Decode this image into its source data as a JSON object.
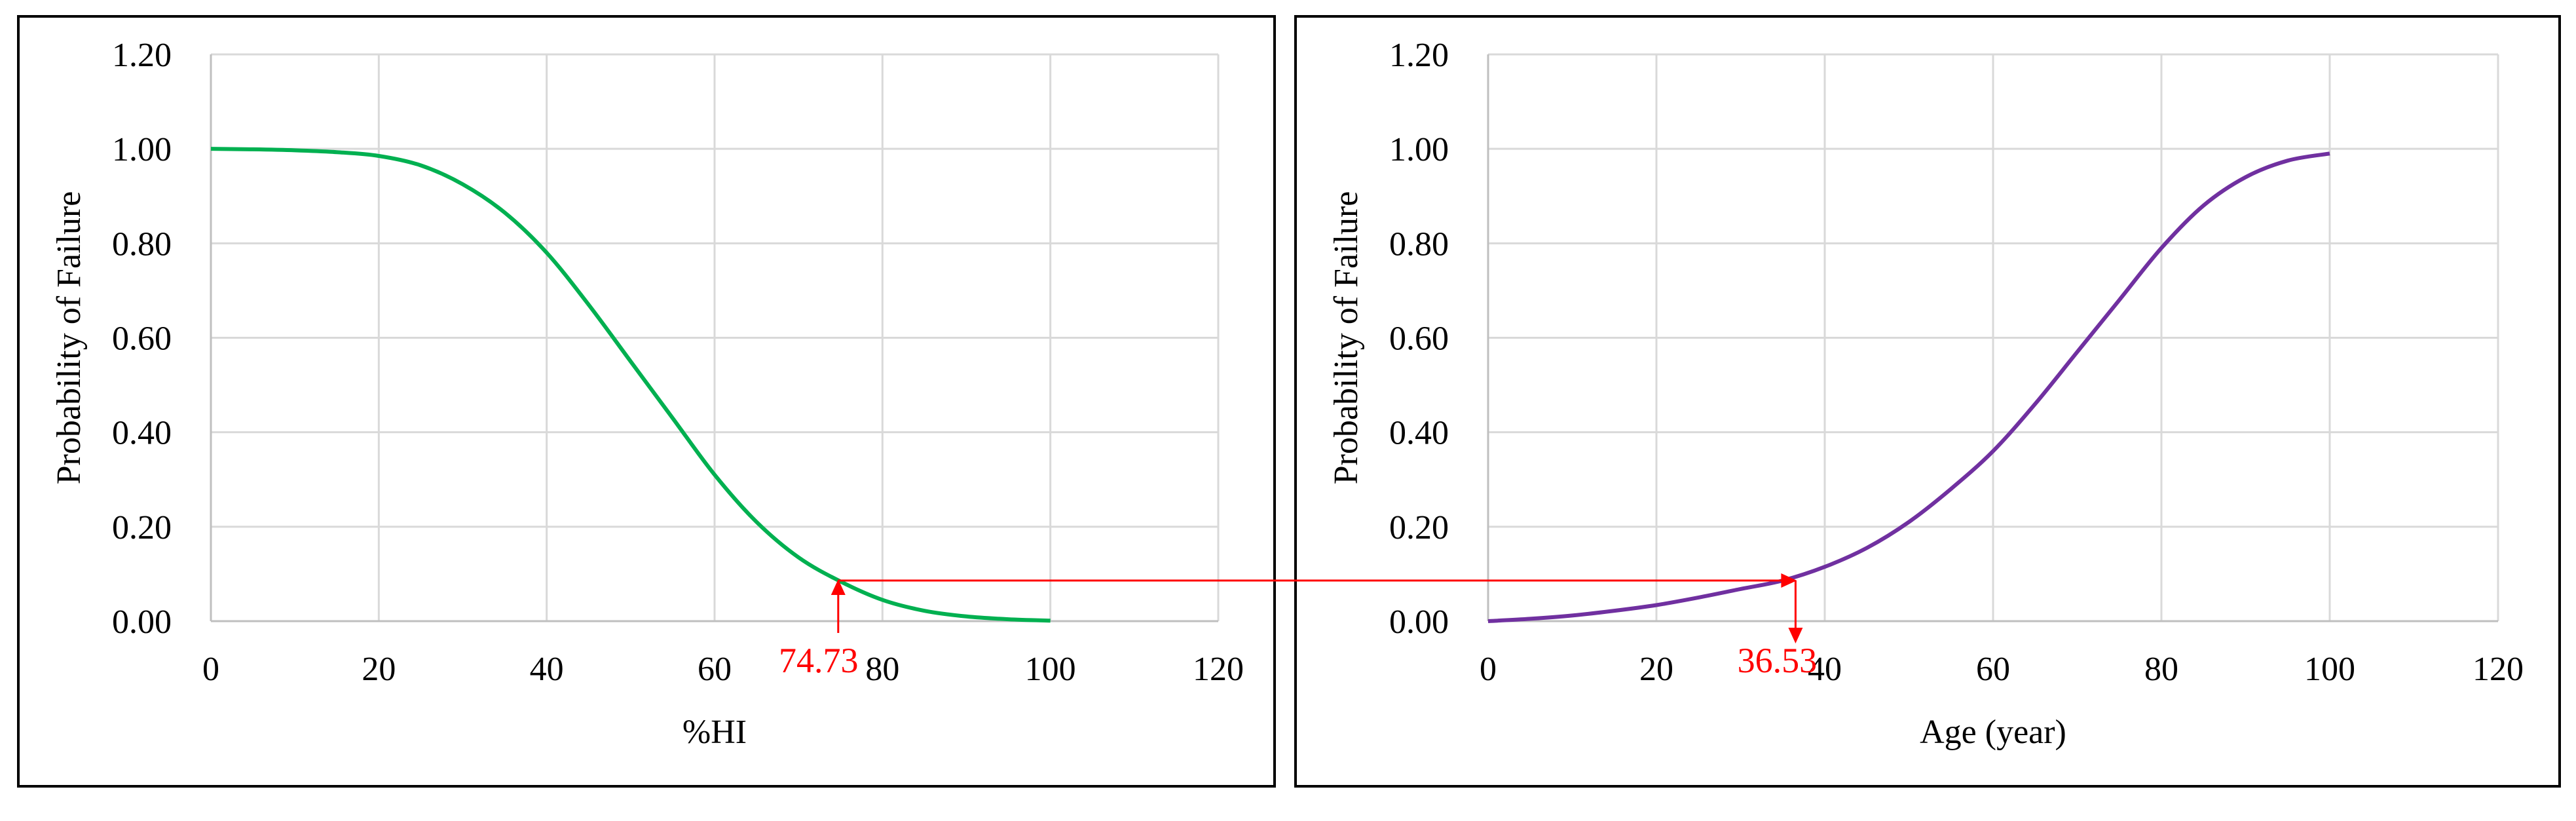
{
  "chart_data": [
    {
      "type": "line",
      "xlabel": "%HI",
      "ylabel": "Probability of Failure",
      "xlim": [
        0,
        120
      ],
      "ylim": [
        0,
        1.2
      ],
      "x_ticks": [
        "0",
        "20",
        "40",
        "60",
        "80",
        "100",
        "120"
      ],
      "y_ticks": [
        "0.00",
        "0.20",
        "0.40",
        "0.60",
        "0.80",
        "1.00",
        "1.20"
      ],
      "grid": true,
      "legend": "none",
      "series": [
        {
          "color": "#00b050",
          "x": [
            0,
            5,
            10,
            15,
            20,
            25,
            30,
            35,
            40,
            45,
            50,
            55,
            60,
            65,
            70,
            75,
            80,
            85,
            90,
            95,
            100
          ],
          "y": [
            1.0,
            0.999,
            0.997,
            0.993,
            0.985,
            0.965,
            0.925,
            0.865,
            0.78,
            0.67,
            0.55,
            0.43,
            0.31,
            0.21,
            0.135,
            0.084,
            0.045,
            0.022,
            0.01,
            0.004,
            0.001
          ]
        }
      ],
      "annotation": {
        "label": "74.73",
        "x": 74.73,
        "y": 0.086,
        "color": "#ff0000"
      }
    },
    {
      "type": "line",
      "xlabel": "Age (year)",
      "ylabel": "Probability of Failure",
      "xlim": [
        0,
        120
      ],
      "ylim": [
        0,
        1.2
      ],
      "x_ticks": [
        "0",
        "20",
        "40",
        "60",
        "80",
        "100",
        "120"
      ],
      "y_ticks": [
        "0.00",
        "0.20",
        "0.40",
        "0.60",
        "0.80",
        "1.00",
        "1.20"
      ],
      "grid": true,
      "legend": "none",
      "series": [
        {
          "color": "#7030a0",
          "x": [
            0,
            5,
            10,
            15,
            20,
            25,
            30,
            35,
            40,
            45,
            50,
            55,
            60,
            65,
            70,
            75,
            80,
            85,
            90,
            95,
            100
          ],
          "y": [
            0.0,
            0.005,
            0.012,
            0.022,
            0.034,
            0.05,
            0.068,
            0.086,
            0.115,
            0.155,
            0.21,
            0.28,
            0.36,
            0.46,
            0.57,
            0.68,
            0.79,
            0.88,
            0.94,
            0.975,
            0.99
          ]
        }
      ],
      "annotation": {
        "label": "36.53",
        "x": 36.53,
        "y": 0.086,
        "color": "#ff0000"
      }
    }
  ]
}
